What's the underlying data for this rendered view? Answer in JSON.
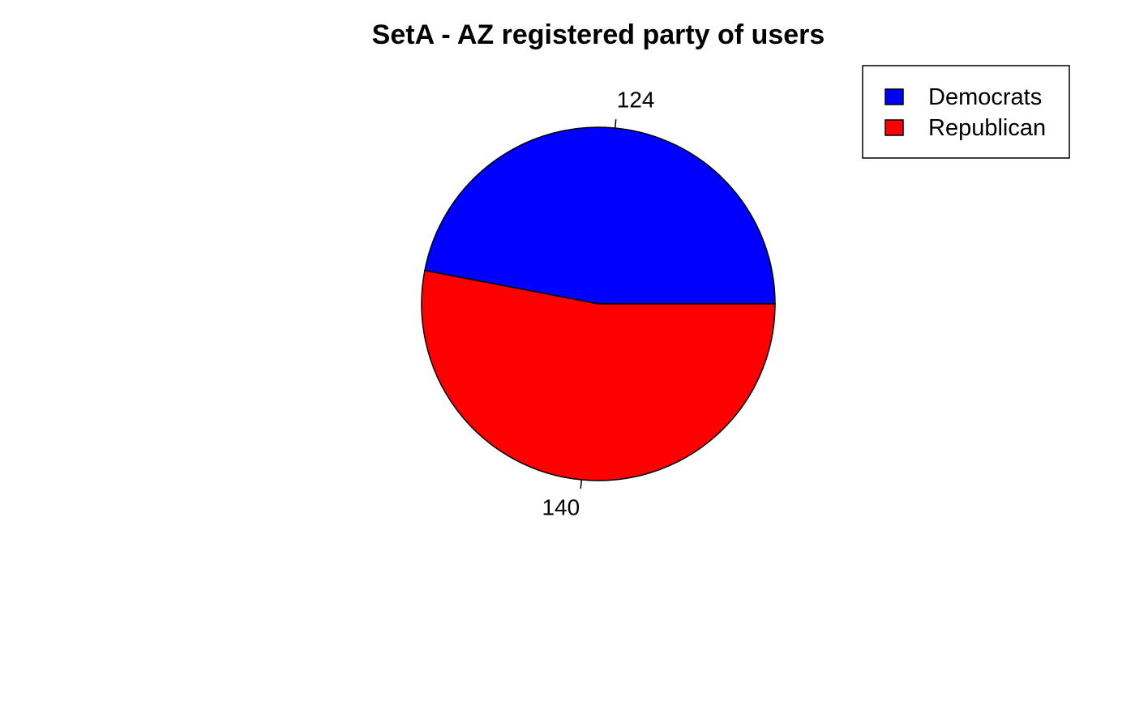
{
  "chart_data": {
    "type": "pie",
    "title": "SetA - AZ registered party of users",
    "slices": [
      {
        "label": "Democrats",
        "value": 124,
        "value_label": "124",
        "color": "#0000ff"
      },
      {
        "label": "Republican",
        "value": 140,
        "value_label": "140",
        "color": "#ff0000"
      }
    ],
    "start_angle_deg": 0,
    "direction": "counterclockwise",
    "legend": {
      "position": "top-right",
      "entries": [
        "Democrats",
        "Republican"
      ]
    }
  }
}
